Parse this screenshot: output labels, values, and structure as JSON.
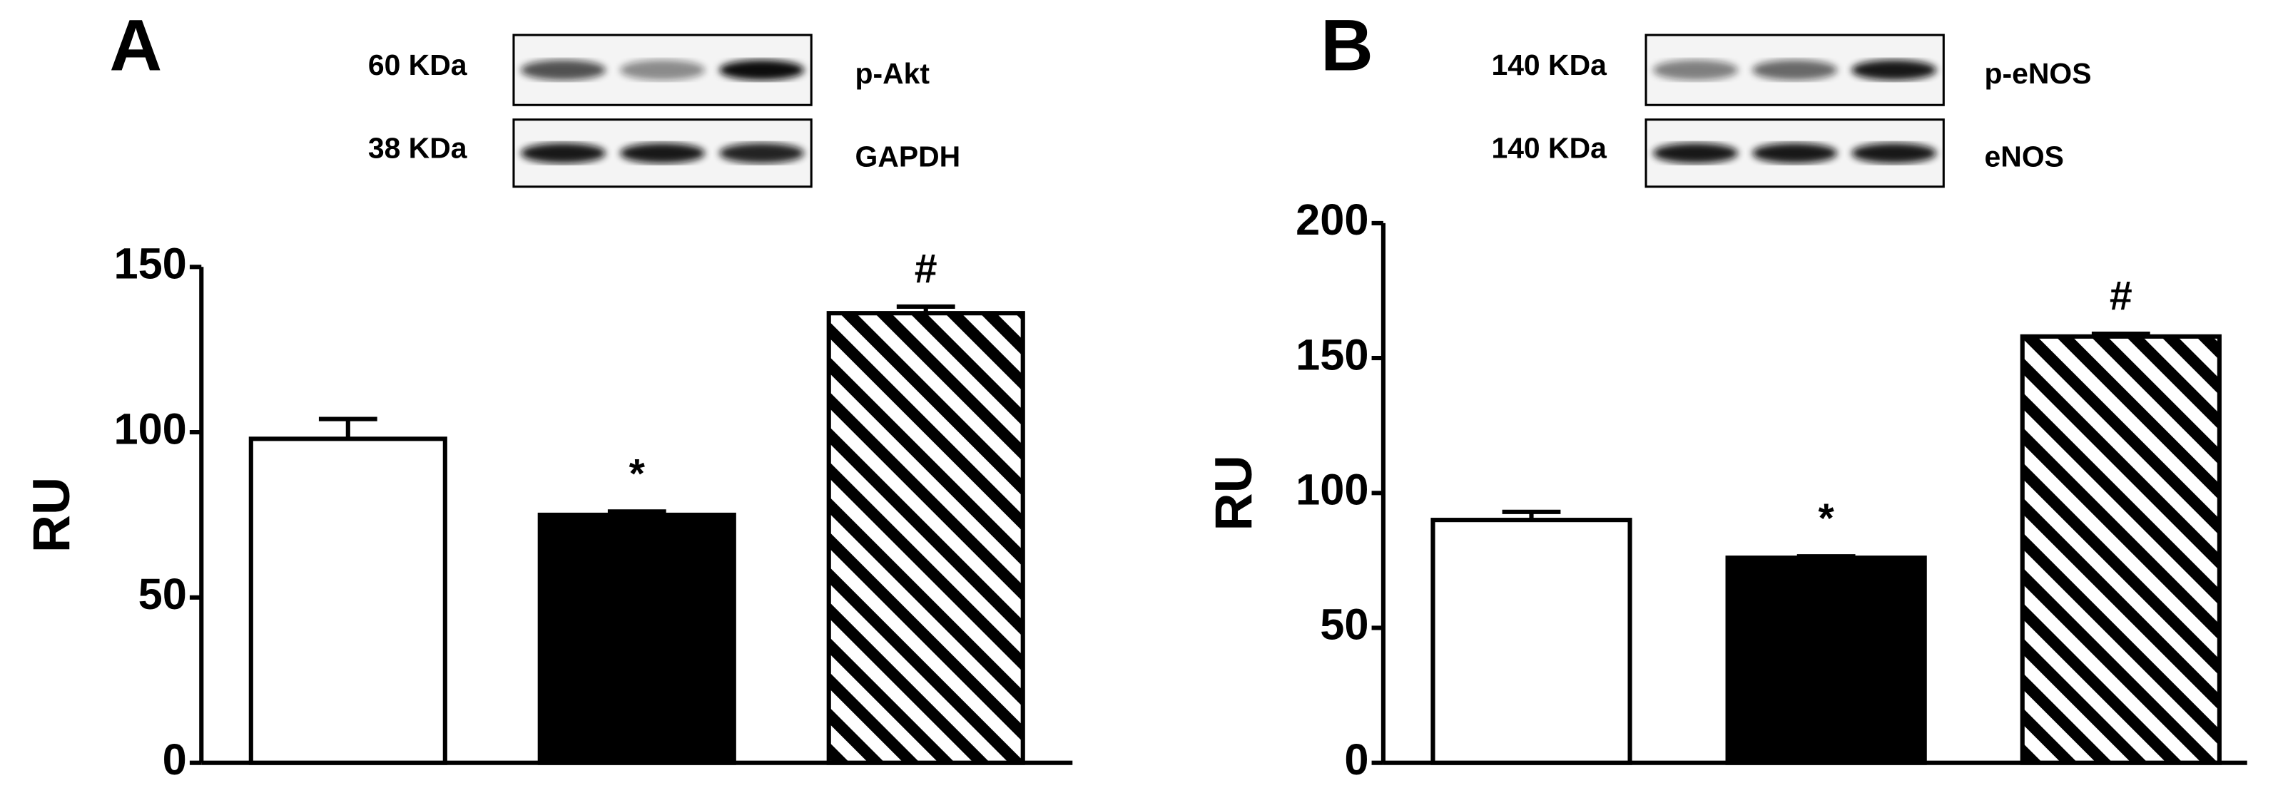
{
  "chart_data": [
    {
      "type": "bar",
      "panel": "A",
      "ylabel": "RU",
      "blot": [
        {
          "weight": "60 KDa",
          "protein": "p-Akt"
        },
        {
          "weight": "38 KDa",
          "protein": "GAPDH"
        }
      ],
      "values": [
        98,
        75,
        136
      ],
      "errors": [
        6,
        1,
        2
      ],
      "annotations": [
        null,
        "*",
        "#"
      ],
      "fills": [
        "#ffffff",
        "#000000",
        "hatch"
      ],
      "ylim": [
        0,
        150
      ],
      "yticks": [
        0,
        50,
        100,
        150
      ]
    },
    {
      "type": "bar",
      "panel": "B",
      "ylabel": "RU",
      "blot": [
        {
          "weight": "140 KDa",
          "protein": "p-eNOS"
        },
        {
          "weight": "140 KDa",
          "protein": "eNOS"
        }
      ],
      "values": [
        90,
        76,
        158
      ],
      "errors": [
        3,
        0.5,
        1
      ],
      "annotations": [
        null,
        "*",
        "#"
      ],
      "fills": [
        "#ffffff",
        "#000000",
        "hatch"
      ],
      "ylim": [
        0,
        200
      ],
      "yticks": [
        0,
        50,
        100,
        150,
        200
      ]
    }
  ]
}
